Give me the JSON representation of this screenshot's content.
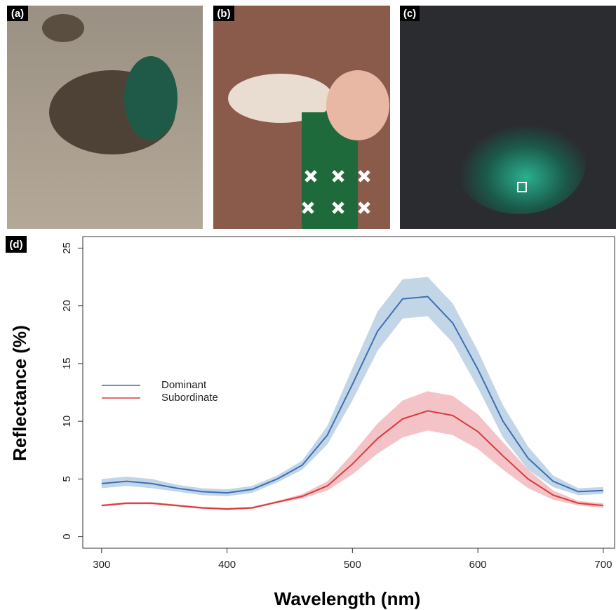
{
  "panels": [
    {
      "label": "(a)"
    },
    {
      "label": "(b)"
    },
    {
      "label": "(c)"
    },
    {
      "label": "(d)"
    }
  ],
  "chart_data": {
    "type": "line",
    "xlabel": "Wavelength (nm)",
    "ylabel": "Reflectance (%)",
    "x": [
      300,
      320,
      340,
      360,
      380,
      400,
      420,
      440,
      460,
      480,
      500,
      520,
      540,
      560,
      580,
      600,
      620,
      640,
      660,
      680,
      700
    ],
    "series": [
      {
        "name": "Dominant",
        "color": "#3c6fb4",
        "band_color": "#b7cfe4",
        "values": [
          4.6,
          4.8,
          4.6,
          4.2,
          3.9,
          3.8,
          4.1,
          5.0,
          6.2,
          8.8,
          13.2,
          17.8,
          20.6,
          20.8,
          18.5,
          14.5,
          10.0,
          6.8,
          4.8,
          3.9,
          4.0
        ],
        "upper": [
          5.0,
          5.2,
          5.0,
          4.5,
          4.2,
          4.1,
          4.4,
          5.3,
          6.6,
          9.6,
          14.6,
          19.5,
          22.3,
          22.5,
          20.2,
          16.1,
          11.4,
          7.8,
          5.3,
          4.2,
          4.3
        ],
        "lower": [
          4.2,
          4.4,
          4.2,
          3.9,
          3.6,
          3.5,
          3.8,
          4.7,
          5.8,
          8.0,
          11.8,
          16.1,
          18.9,
          19.1,
          16.8,
          12.9,
          8.6,
          5.8,
          4.3,
          3.6,
          3.7
        ]
      },
      {
        "name": "Subordinate",
        "color": "#d93a3a",
        "band_color": "#f2b9bd",
        "values": [
          2.7,
          2.9,
          2.9,
          2.7,
          2.5,
          2.4,
          2.5,
          3.0,
          3.5,
          4.4,
          6.3,
          8.5,
          10.2,
          10.9,
          10.5,
          9.1,
          7.0,
          5.0,
          3.6,
          2.9,
          2.7
        ],
        "upper": [
          2.8,
          3.0,
          3.0,
          2.8,
          2.6,
          2.5,
          2.6,
          3.1,
          3.7,
          4.8,
          7.2,
          9.8,
          11.8,
          12.6,
          12.2,
          10.6,
          8.2,
          5.8,
          4.0,
          3.1,
          2.9
        ],
        "lower": [
          2.6,
          2.8,
          2.8,
          2.6,
          2.4,
          2.3,
          2.4,
          2.9,
          3.3,
          4.0,
          5.4,
          7.2,
          8.6,
          9.2,
          8.8,
          7.6,
          5.8,
          4.2,
          3.2,
          2.7,
          2.5
        ]
      }
    ],
    "xlim": [
      285,
      709
    ],
    "ylim": [
      -1,
      26
    ],
    "xticks": [
      300,
      400,
      500,
      600,
      700
    ],
    "yticks": [
      0,
      5,
      10,
      15,
      20,
      25
    ]
  }
}
